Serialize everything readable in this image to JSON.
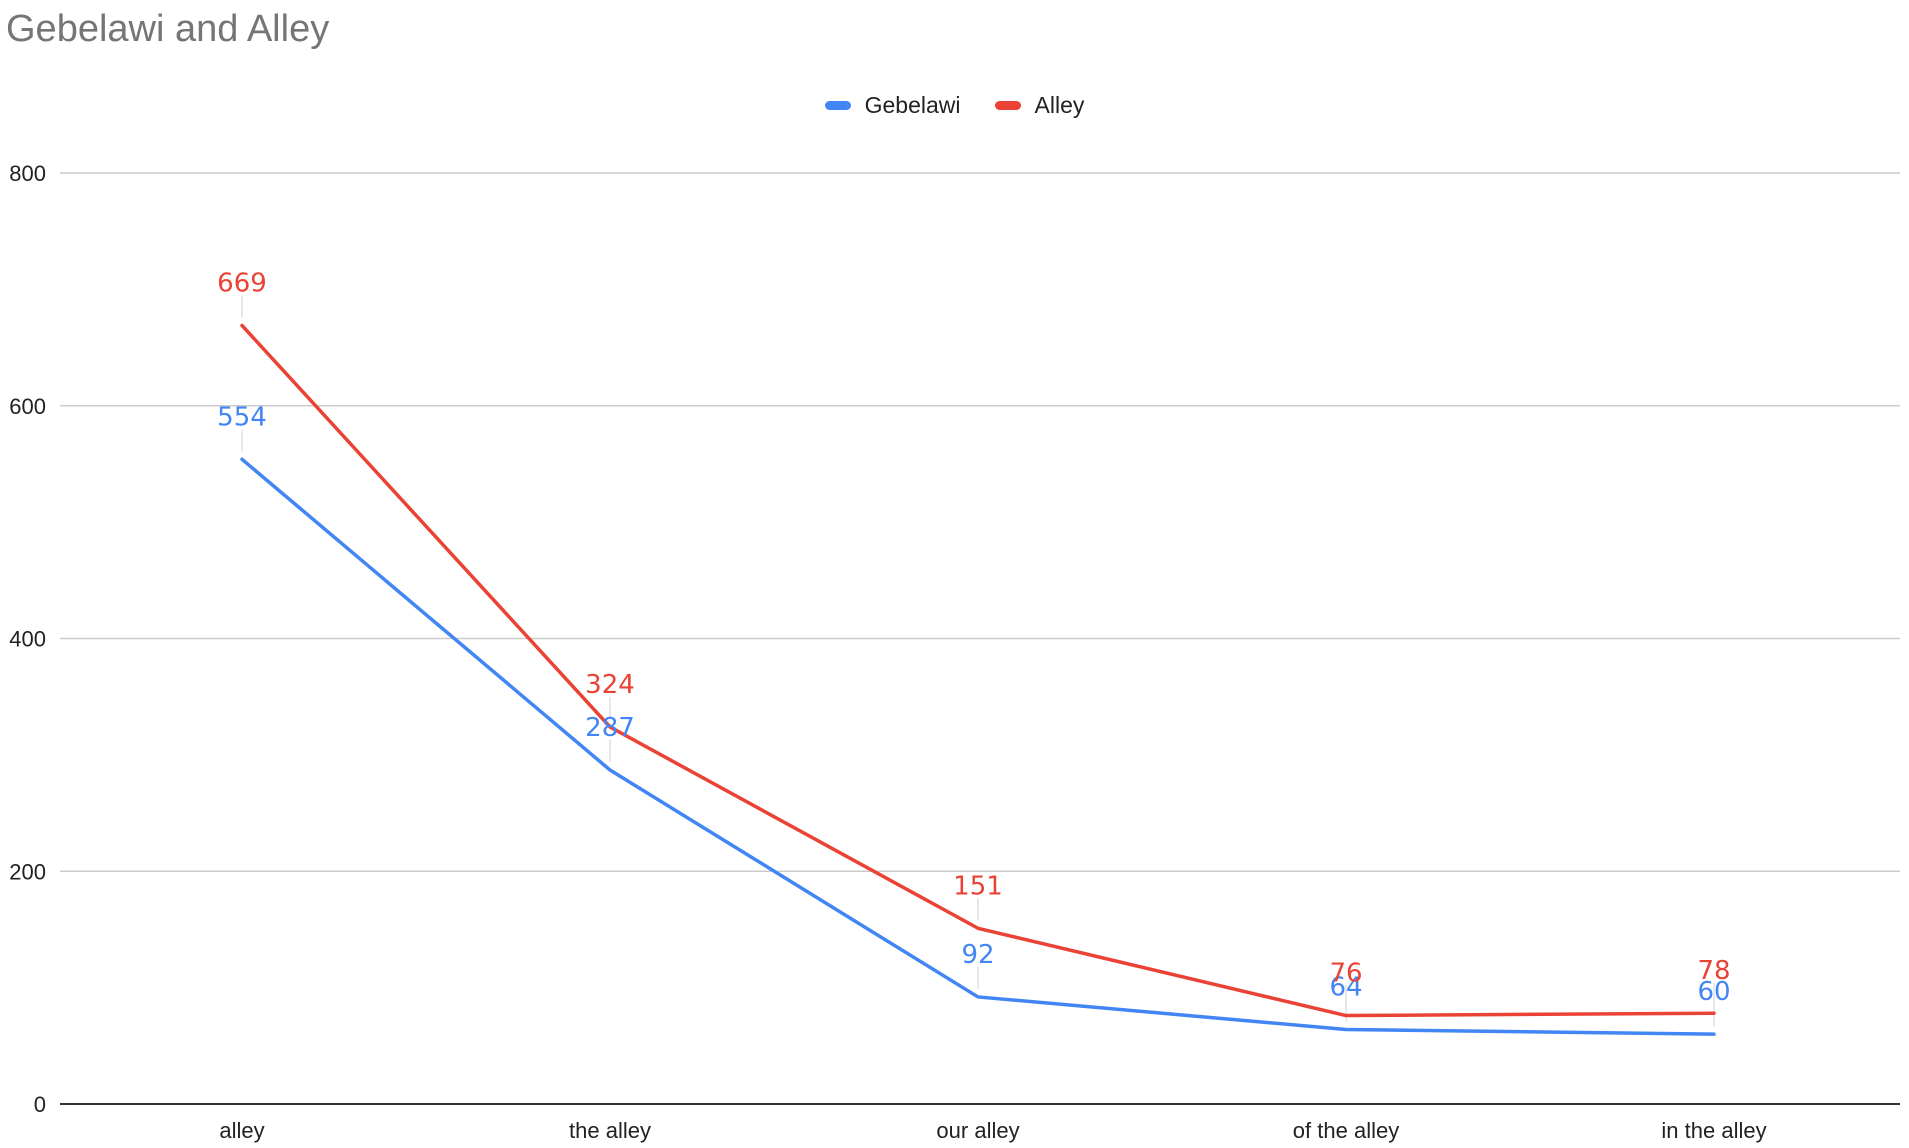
{
  "chart_data": {
    "type": "line",
    "title": "Gebelawi and Alley",
    "xlabel": "",
    "ylabel": "",
    "categories": [
      "alley",
      "the alley",
      "our alley",
      "of the alley",
      "in the alley"
    ],
    "series": [
      {
        "name": "Gebelawi",
        "color": "#4285f4",
        "values": [
          554,
          287,
          92,
          64,
          60
        ],
        "labels": [
          "554",
          "287",
          "92",
          "64",
          "60"
        ]
      },
      {
        "name": "Alley",
        "color": "#ea4335",
        "values": [
          669,
          324,
          151,
          76,
          78
        ],
        "labels": [
          "669",
          "324",
          "151",
          "76",
          "78"
        ]
      }
    ],
    "ylim": [
      0,
      800
    ],
    "yticks": [
      0,
      200,
      400,
      600,
      800
    ],
    "ytick_labels": [
      "0",
      "200",
      "400",
      "600",
      "800"
    ],
    "grid": true,
    "legend_position": "top-center",
    "data_labels": true
  }
}
